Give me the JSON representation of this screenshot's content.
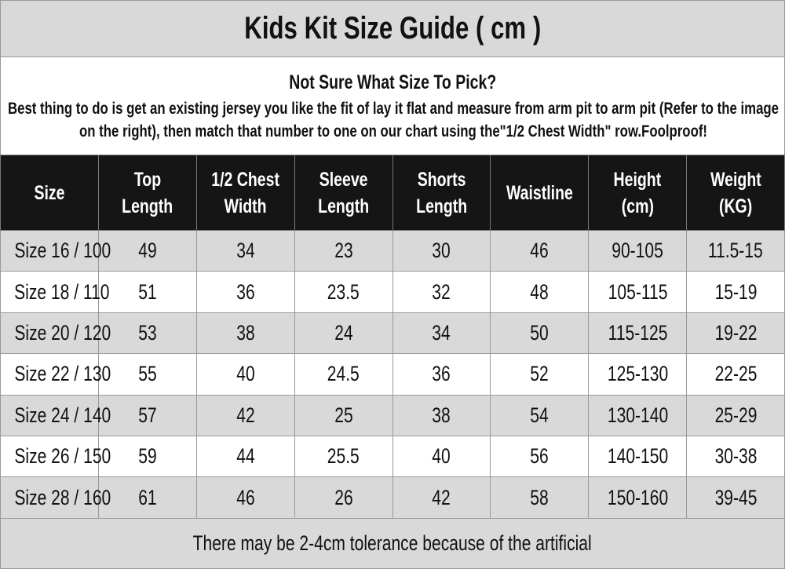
{
  "title": "Kids Kit Size Guide ( cm )",
  "intro": {
    "heading": "Not Sure What Size To Pick?",
    "text": "Best thing to do is get an existing jersey you like the fit of lay it flat and measure from arm pit to arm pit (Refer to the image on the right), then match that number to one on our chart using the\"1/2 Chest Width\" row.Foolproof!"
  },
  "headers": [
    [
      "Size"
    ],
    [
      "Top",
      "Length"
    ],
    [
      "1/2 Chest",
      "Width"
    ],
    [
      "Sleeve",
      "Length"
    ],
    [
      "Shorts",
      "Length"
    ],
    [
      "Waistline"
    ],
    [
      "Height",
      "(cm)"
    ],
    [
      "Weight",
      "(KG)"
    ]
  ],
  "rows": [
    [
      "Size 16 / 100",
      "49",
      "34",
      "23",
      "30",
      "46",
      "90-105",
      "11.5-15"
    ],
    [
      "Size 18 / 110",
      "51",
      "36",
      "23.5",
      "32",
      "48",
      "105-115",
      "15-19"
    ],
    [
      "Size 20 / 120",
      "53",
      "38",
      "24",
      "34",
      "50",
      "115-125",
      "19-22"
    ],
    [
      "Size 22 / 130",
      "55",
      "40",
      "24.5",
      "36",
      "52",
      "125-130",
      "22-25"
    ],
    [
      "Size 24 / 140",
      "57",
      "42",
      "25",
      "38",
      "54",
      "130-140",
      "25-29"
    ],
    [
      "Size 26 / 150",
      "59",
      "44",
      "25.5",
      "40",
      "56",
      "140-150",
      "30-38"
    ],
    [
      "Size 28 / 160",
      "61",
      "46",
      "26",
      "42",
      "58",
      "150-160",
      "39-45"
    ]
  ],
  "footer": "There may be 2-4cm tolerance because of the artificial",
  "colors": {
    "header_bg": "#151515",
    "stripe": "#d9d9d9",
    "border": "#999999"
  }
}
